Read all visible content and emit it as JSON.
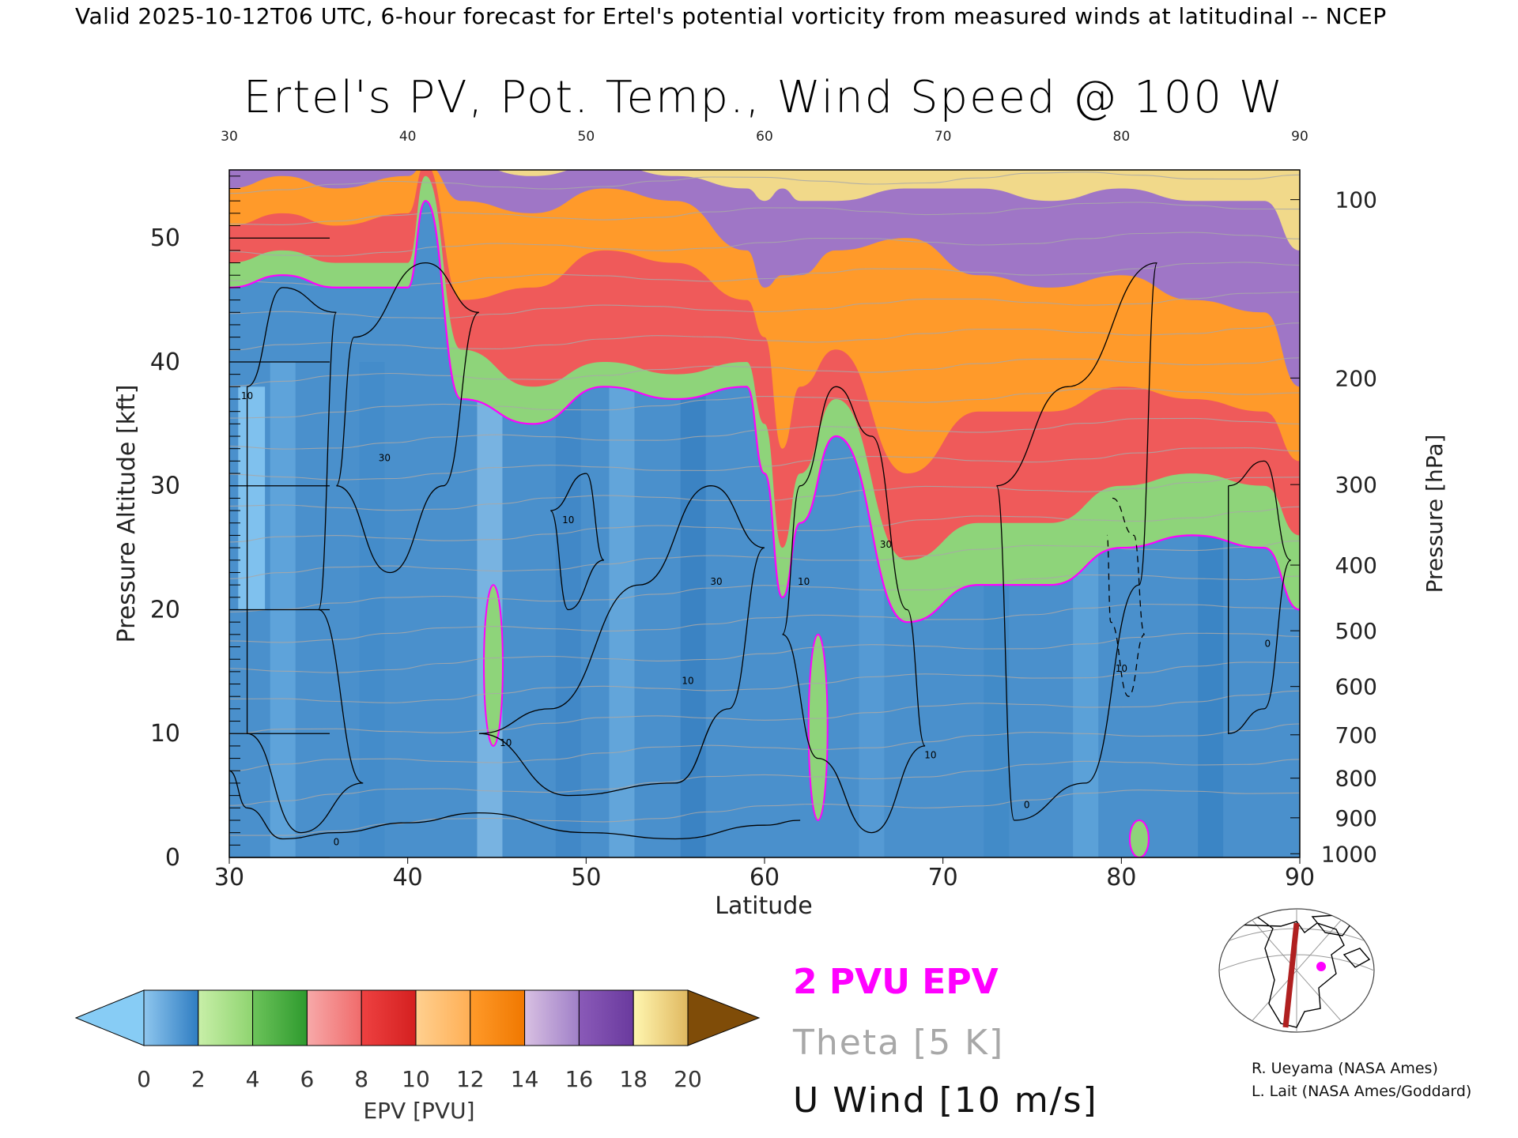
{
  "header": "Valid 2025-10-12T06 UTC, 6-hour forecast for Ertel's potential vorticity from measured winds at latitudinal -- NCEP",
  "chart_data": {
    "type": "heatmap",
    "title": "Ertel's PV, Pot. Temp., Wind Speed @ 100 W",
    "xlabel": "Latitude",
    "ylabel_left": "Pressure Altitude [kft]",
    "ylabel_right": "Pressure [hPa]",
    "xlim": [
      30,
      90
    ],
    "ylim": [
      0,
      55.5
    ],
    "x_ticks": [
      "30",
      "40",
      "50",
      "60",
      "70",
      "80",
      "90"
    ],
    "y_ticks_left": [
      "0",
      "10",
      "20",
      "30",
      "40",
      "50"
    ],
    "y_ticks_right": [
      {
        "label": "100",
        "kft": 53.1
      },
      {
        "label": "200",
        "kft": 38.7
      },
      {
        "label": "300",
        "kft": 30.1
      },
      {
        "label": "400",
        "kft": 23.6
      },
      {
        "label": "500",
        "kft": 18.3
      },
      {
        "label": "600",
        "kft": 13.8
      },
      {
        "label": "700",
        "kft": 9.9
      },
      {
        "label": "800",
        "kft": 6.4
      },
      {
        "label": "900",
        "kft": 3.2
      },
      {
        "label": "1000",
        "kft": 0.3
      }
    ],
    "epv_colorbar": {
      "label": "EPV [PVU]",
      "ticks": [
        "0",
        "2",
        "4",
        "6",
        "8",
        "10",
        "12",
        "14",
        "16",
        "18",
        "20"
      ],
      "under_color": "#87ccf5",
      "over_color": "#7f4c08",
      "bins": [
        {
          "range": [
            0,
            2
          ],
          "colors": [
            "#8ec6ee",
            "#2f7dc2"
          ]
        },
        {
          "range": [
            2,
            4
          ],
          "colors": [
            "#c8efa8",
            "#8fd470"
          ]
        },
        {
          "range": [
            4,
            6
          ],
          "colors": [
            "#6cc35a",
            "#2e9a2e"
          ]
        },
        {
          "range": [
            6,
            8
          ],
          "colors": [
            "#f7a9a9",
            "#f06b6b"
          ]
        },
        {
          "range": [
            8,
            10
          ],
          "colors": [
            "#ee4141",
            "#d42020"
          ]
        },
        {
          "range": [
            10,
            12
          ],
          "colors": [
            "#ffd090",
            "#ffaf55"
          ]
        },
        {
          "range": [
            12,
            14
          ],
          "colors": [
            "#ff9a2a",
            "#f07800"
          ]
        },
        {
          "range": [
            14,
            16
          ],
          "colors": [
            "#d8c0e2",
            "#a080c8"
          ]
        },
        {
          "range": [
            16,
            18
          ],
          "colors": [
            "#8a5ab8",
            "#6a3a9e"
          ]
        },
        {
          "range": [
            18,
            20
          ],
          "colors": [
            "#fff6b0",
            "#e0b860"
          ]
        }
      ]
    },
    "epv_layers_kft": [
      {
        "lat": [
          30,
          33,
          36,
          40,
          41,
          43,
          47,
          51,
          55,
          59,
          60,
          61,
          62,
          64,
          68,
          72,
          76,
          80,
          84,
          88,
          90
        ],
        "pv2": [
          46,
          47,
          46,
          46,
          53,
          37,
          35,
          38,
          37,
          38,
          31,
          21,
          27,
          34,
          19,
          22,
          22,
          25,
          26,
          25,
          20
        ],
        "pv6": [
          48,
          49,
          48,
          48,
          55,
          41,
          38,
          40,
          39,
          40,
          35,
          25,
          31,
          37,
          24,
          27,
          27,
          30,
          31,
          30,
          26
        ],
        "pv10": [
          51,
          52,
          51,
          52,
          56,
          45,
          46,
          49,
          48,
          45,
          42,
          33,
          38,
          41,
          31,
          36,
          36,
          38,
          37,
          36,
          32
        ],
        "pv14": [
          54,
          55,
          54,
          55,
          56,
          53,
          52,
          54,
          53,
          49,
          46,
          47,
          47,
          49,
          50,
          47,
          46,
          47,
          45,
          44,
          38
        ],
        "pv18": [
          56,
          56,
          56,
          56,
          56,
          56,
          55,
          56,
          55,
          54,
          53,
          54,
          53,
          53,
          54,
          54,
          53,
          54,
          53,
          53,
          49
        ]
      }
    ],
    "lower_pv_features": [
      {
        "name": "streamer-45N",
        "lat": 44.8,
        "kft_range": [
          9,
          22
        ]
      },
      {
        "name": "fold-63N",
        "lat": 63,
        "kft_range": [
          3,
          18
        ]
      },
      {
        "name": "surface-81N",
        "lat": 81,
        "kft_range": [
          0,
          3
        ]
      }
    ],
    "u_wind_contours": [
      {
        "label": "10",
        "lat": 31,
        "kft": 37
      },
      {
        "label": "30",
        "lat": 38.7,
        "kft": 32
      },
      {
        "label": "10",
        "lat": 49,
        "kft": 27
      },
      {
        "label": "10",
        "lat": 45.5,
        "kft": 9
      },
      {
        "label": "30",
        "lat": 57.3,
        "kft": 22
      },
      {
        "label": "10",
        "lat": 62.2,
        "kft": 22
      },
      {
        "label": "30",
        "lat": 66.8,
        "kft": 25
      },
      {
        "label": "10",
        "lat": 55.7,
        "kft": 14
      },
      {
        "label": "10",
        "lat": 69.3,
        "kft": 8
      },
      {
        "label": "10",
        "lat": 80,
        "kft": 15
      },
      {
        "label": "0",
        "lat": 36,
        "kft": 1
      },
      {
        "label": "0",
        "lat": 88.2,
        "kft": 17
      },
      {
        "label": "0",
        "lat": 74.7,
        "kft": 4
      }
    ],
    "theta_interval_K": 5
  },
  "legend": {
    "pv2": "2 PVU EPV",
    "theta": "Theta [5 K]",
    "uwind": "U Wind [10 m/s]"
  },
  "credits": {
    "line1": "R. Ueyama (NASA Ames)",
    "line2": "L. Lait (NASA Ames/Goddard)"
  },
  "colors": {
    "pv2_contour": "#ff00ff",
    "theta_contour": "#a8a8a8",
    "wind_contour": "#000000",
    "transect": "#b02020",
    "location_marker": "#ff00ff"
  }
}
